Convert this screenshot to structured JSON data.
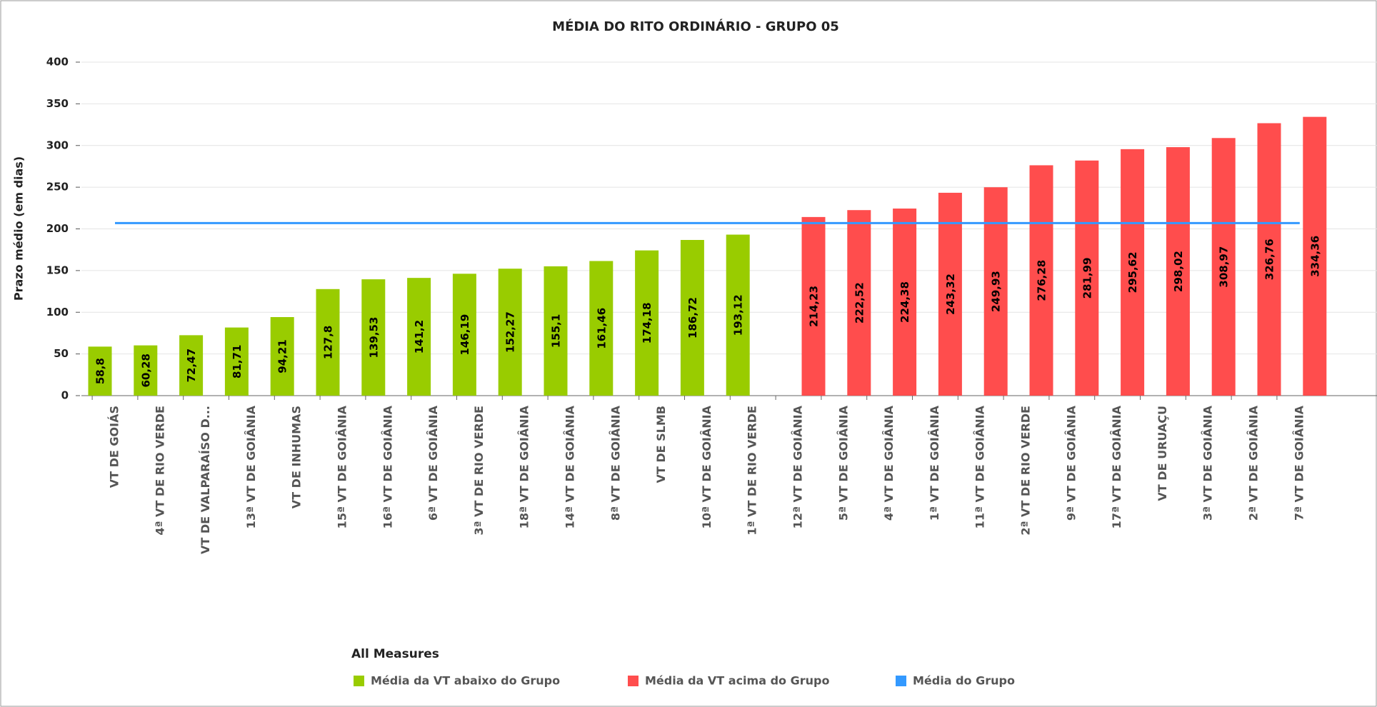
{
  "chart_data": {
    "type": "bar",
    "title": "MÉDIA DO RITO ORDINÁRIO - GRUPO 05",
    "y_label": "Prazo médio (em dias)",
    "legend_title": "All Measures",
    "categories": [
      "VT DE GOIÁS",
      "4ª VT DE RIO VERDE",
      "VT DE VALPARAÍSO D...",
      "13ª VT DE GOIÂNIA",
      "VT DE INHUMAS",
      "15ª VT DE GOIÂNIA",
      "16ª VT DE GOIÂNIA",
      "6ª VT DE GOIÂNIA",
      "3ª VT DE RIO VERDE",
      "18ª VT DE GOIÂNIA",
      "14ª VT DE GOIÂNIA",
      "8ª VT DE GOIÂNIA",
      "VT DE SLMB",
      "10ª VT DE GOIÂNIA",
      "1ª VT DE RIO VERDE",
      "12ª VT DE GOIÂNIA",
      "5ª VT DE GOIÂNIA",
      "4ª VT DE GOIÂNIA",
      "1ª VT DE GOIÂNIA",
      "11ª VT DE GOIÂNIA",
      "2ª VT DE RIO VERDE",
      "9ª VT DE GOIÂNIA",
      "17ª VT DE GOIÂNIA",
      "VT DE URUAÇU",
      "3ª VT DE GOIÂNIA",
      "2ª VT DE GOIÂNIA",
      "7ª VT DE GOIÂNIA"
    ],
    "series": [
      {
        "name": "Média da VT abaixo do Grupo",
        "color": "#99cc00",
        "values": [
          58.8,
          60.28,
          72.47,
          81.71,
          94.21,
          127.8,
          139.53,
          141.2,
          146.19,
          152.27,
          155.1,
          161.46,
          174.18,
          186.72,
          193.12,
          null,
          null,
          null,
          null,
          null,
          null,
          null,
          null,
          null,
          null,
          null,
          null
        ],
        "value_labels": [
          "58,8",
          "60,28",
          "72,47",
          "81,71",
          "94,21",
          "127,8",
          "139,53",
          "141,2",
          "146,19",
          "152,27",
          "155,1",
          "161,46",
          "174,18",
          "186,72",
          "193,12",
          null,
          null,
          null,
          null,
          null,
          null,
          null,
          null,
          null,
          null,
          null,
          null
        ]
      },
      {
        "name": "Média da VT acima do Grupo",
        "color": "#ff4d4d",
        "values": [
          null,
          null,
          null,
          null,
          null,
          null,
          null,
          null,
          null,
          null,
          null,
          null,
          null,
          null,
          null,
          214.23,
          222.52,
          224.38,
          243.32,
          249.93,
          276.28,
          281.99,
          295.62,
          298.02,
          308.97,
          326.76,
          334.36
        ],
        "value_labels": [
          null,
          null,
          null,
          null,
          null,
          null,
          null,
          null,
          null,
          null,
          null,
          null,
          null,
          null,
          null,
          "214,23",
          "222,52",
          "224,38",
          "243,32",
          "249,93",
          "276,28",
          "281,99",
          "295,62",
          "298,02",
          "308,97",
          "326,76",
          "334,36"
        ]
      },
      {
        "name": "Média do Grupo",
        "color": "#3399ff",
        "type": "line",
        "values": [
          207,
          207,
          207,
          207,
          207,
          207,
          207,
          207,
          207,
          207,
          207,
          207,
          207,
          207,
          207,
          207,
          207,
          207,
          207,
          207,
          207,
          207,
          207,
          207,
          207,
          207,
          207
        ]
      }
    ],
    "ylim": [
      0,
      400
    ],
    "yticks": [
      0,
      50,
      100,
      150,
      200,
      250,
      300,
      350,
      400
    ],
    "grid": true
  }
}
